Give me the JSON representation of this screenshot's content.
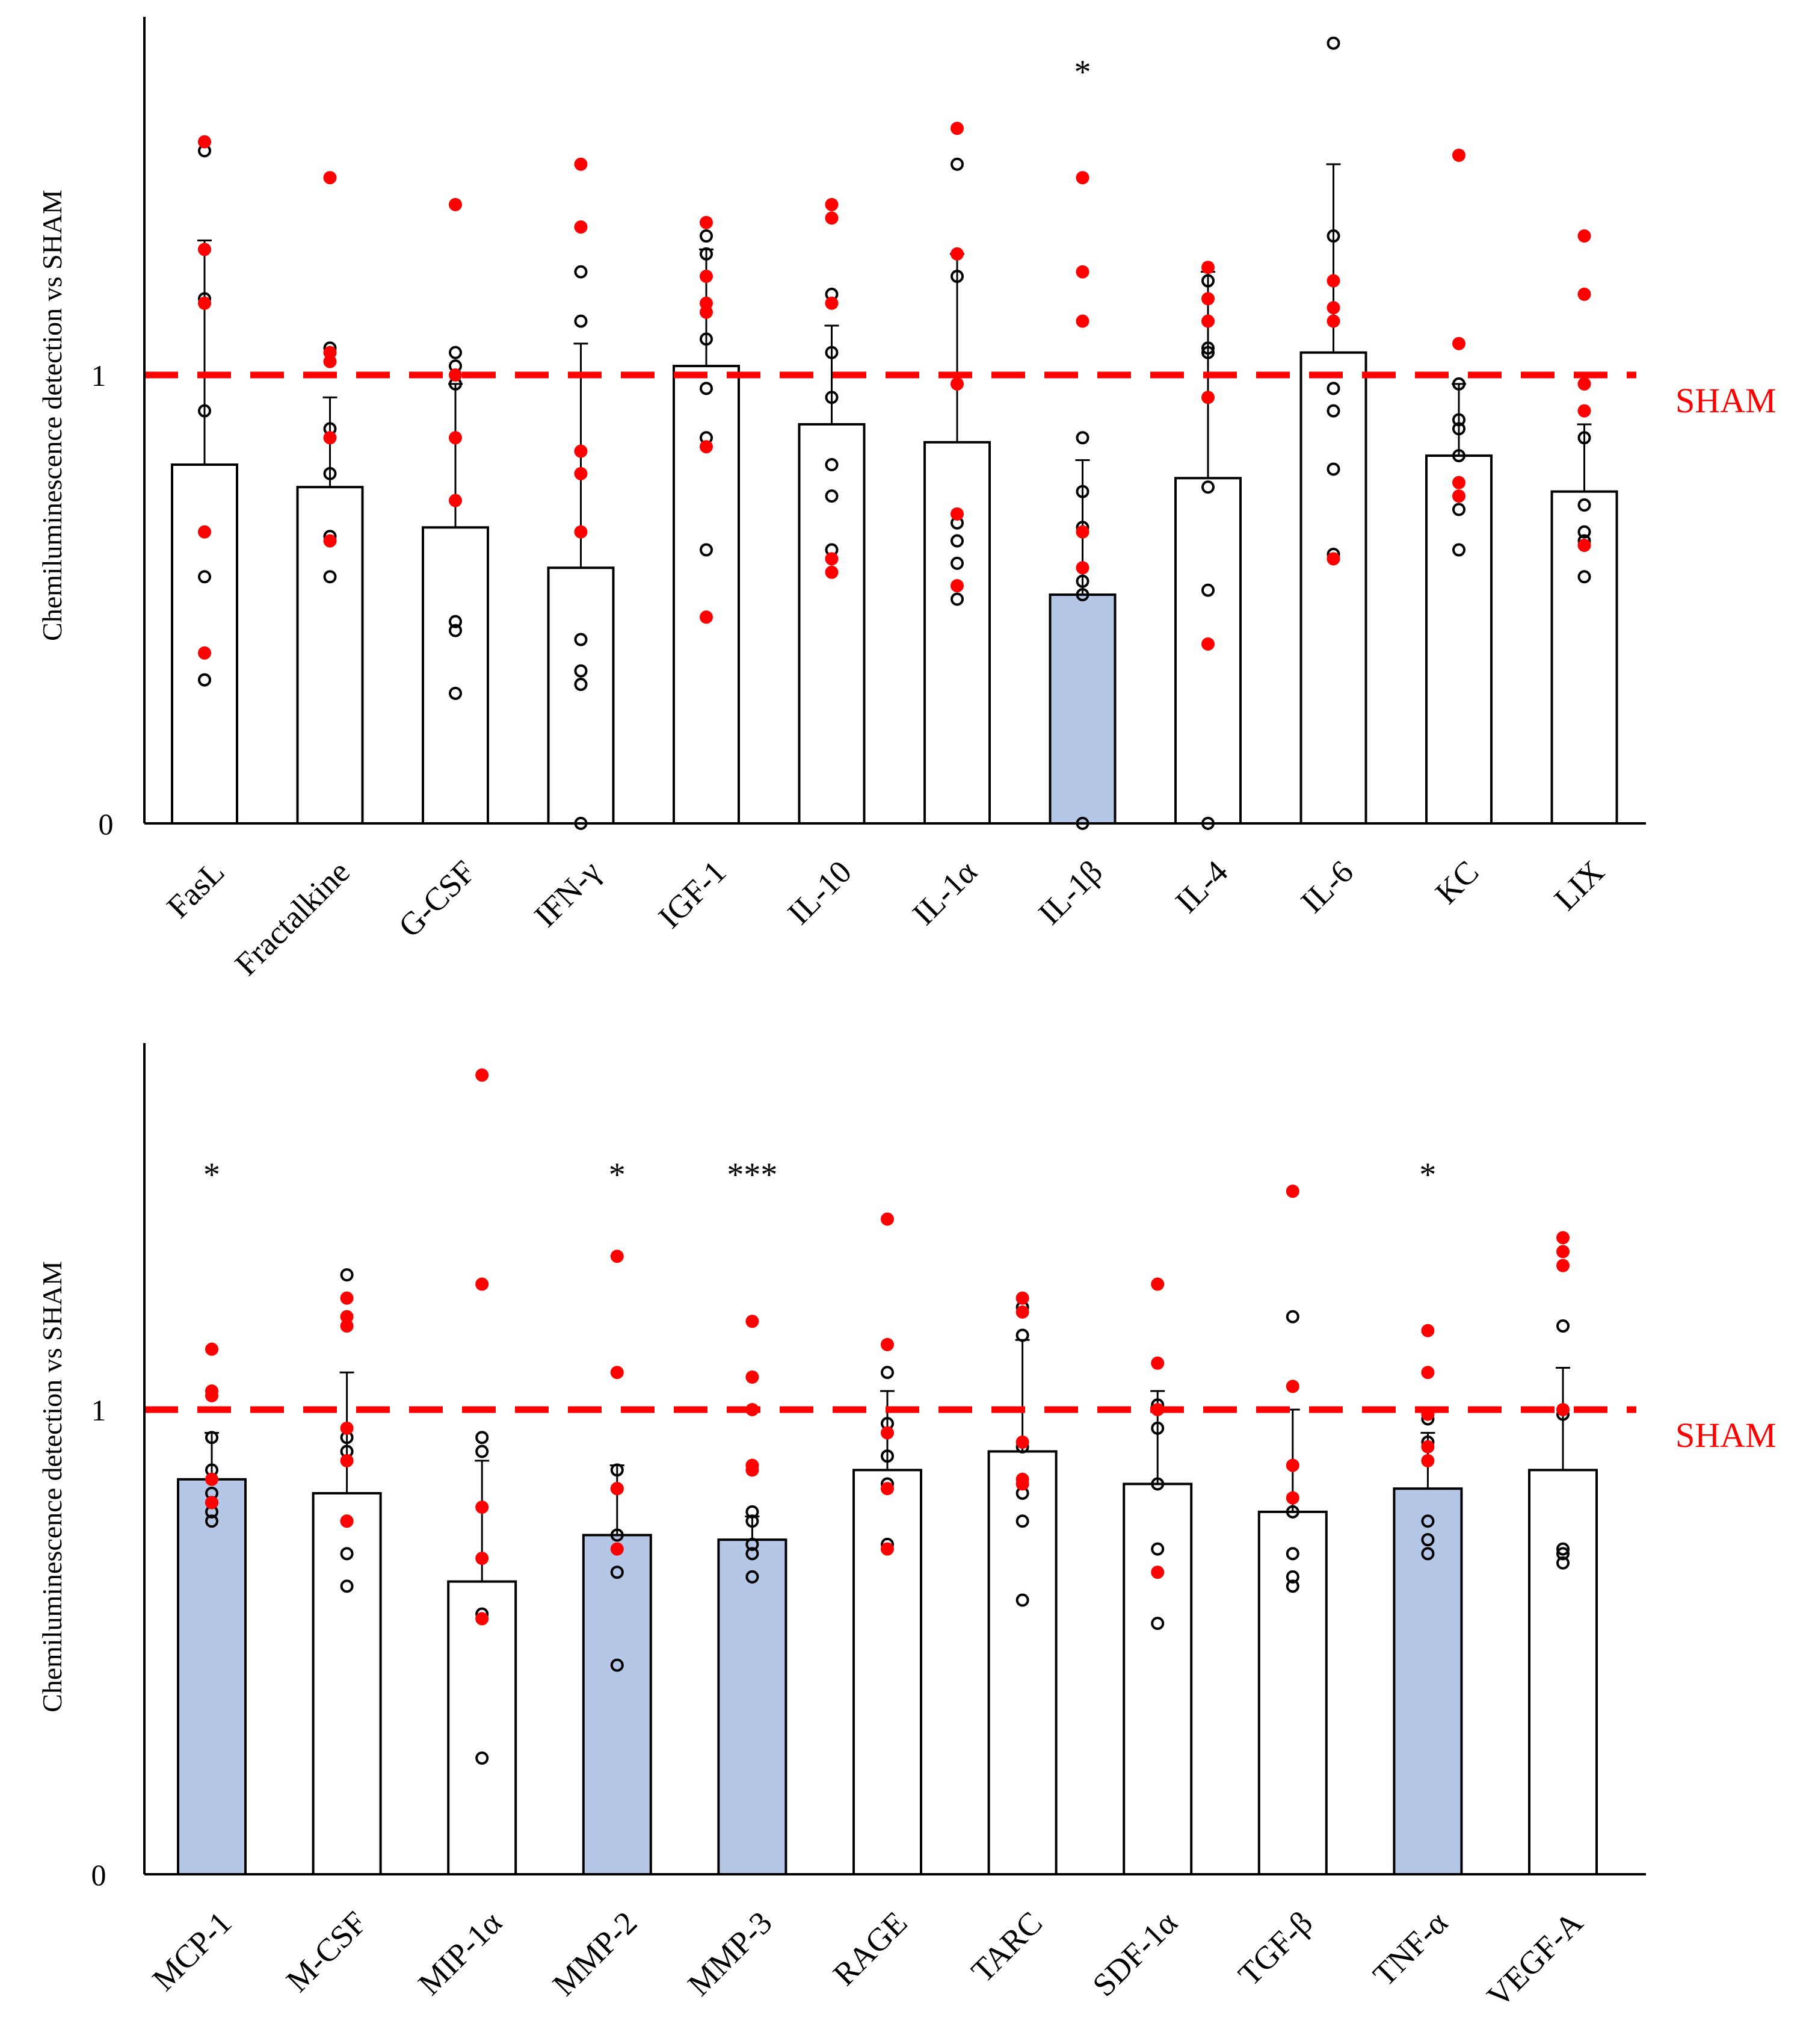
{
  "colors": {
    "bar_default": "#ffffff",
    "bar_significant": "#b4c7e7",
    "red_points": "#ff0000",
    "open_points": "#000000",
    "sham_line": "#ff0000",
    "axis": "#000000"
  },
  "chart_data": [
    {
      "type": "bar",
      "title": "",
      "xlabel": "",
      "ylabel": "Chemiluminescence detection vs SHAM",
      "ylim": [
        0,
        1.8
      ],
      "yticks": [
        "0",
        "1"
      ],
      "reference_line": {
        "value": 1,
        "label": "SHAM",
        "style": "dashed"
      },
      "categories": [
        "FasL",
        "Fractalkine",
        "G-CSF",
        "IFN-γ",
        "IGF-1",
        "IL-10",
        "IL-1α",
        "IL-1β",
        "IL-4",
        "IL-6",
        "KC",
        "LIX"
      ],
      "values": [
        0.8,
        0.75,
        0.66,
        0.57,
        1.02,
        0.89,
        0.85,
        0.51,
        0.77,
        1.05,
        0.82,
        0.74
      ],
      "errors": [
        0.5,
        0.2,
        0.32,
        0.5,
        0.26,
        0.22,
        0.42,
        0.3,
        0.46,
        0.42,
        0.16,
        0.15
      ],
      "highlighted": [
        false,
        false,
        false,
        false,
        false,
        false,
        false,
        true,
        false,
        false,
        false,
        false
      ],
      "significance": [
        "",
        "",
        "",
        "",
        "",
        "",
        "",
        "*",
        "",
        "",
        "",
        ""
      ],
      "points_red": [
        [
          1.52,
          1.28,
          1.16,
          0.65,
          0.38
        ],
        [
          1.44,
          1.05,
          1.03,
          0.86,
          0.63
        ],
        [
          1.38,
          1.0,
          0.86,
          0.72
        ],
        [
          1.47,
          1.33,
          0.83,
          0.78,
          0.65
        ],
        [
          1.34,
          1.22,
          1.16,
          1.14,
          0.84,
          0.46
        ],
        [
          1.38,
          1.35,
          1.16,
          0.59,
          0.56
        ],
        [
          1.55,
          1.27,
          0.98,
          0.69,
          0.53
        ],
        [
          1.44,
          1.23,
          1.12,
          0.65,
          0.57
        ],
        [
          1.24,
          1.17,
          1.12,
          0.95,
          0.4
        ],
        [
          1.21,
          1.15,
          1.12,
          0.59
        ],
        [
          1.49,
          1.07,
          0.76,
          0.73
        ],
        [
          1.31,
          1.18,
          0.98,
          0.92,
          0.62
        ]
      ],
      "points_open": [
        [
          1.5,
          1.17,
          0.92,
          0.55,
          0.32,
          0.32
        ],
        [
          1.06,
          0.88,
          0.78,
          0.64,
          0.55
        ],
        [
          1.05,
          1.02,
          0.98,
          0.45,
          0.43,
          0.29
        ],
        [
          1.23,
          1.12,
          0.41,
          0.34,
          0.31,
          0.0
        ],
        [
          1.31,
          1.27,
          1.08,
          0.97,
          0.86,
          0.61
        ],
        [
          1.18,
          1.05,
          0.95,
          0.8,
          0.73,
          0.61
        ],
        [
          1.47,
          1.22,
          0.67,
          0.63,
          0.58,
          0.5
        ],
        [
          0.86,
          0.74,
          0.66,
          0.54,
          0.51,
          0.0
        ],
        [
          1.21,
          1.06,
          1.05,
          0.75,
          0.52,
          0.0
        ],
        [
          1.74,
          1.31,
          0.97,
          0.92,
          0.79,
          0.6
        ],
        [
          0.98,
          0.9,
          0.88,
          0.82,
          0.7,
          0.61
        ],
        [
          0.86,
          0.71,
          0.65,
          0.63,
          0.55
        ]
      ]
    },
    {
      "type": "bar",
      "title": "",
      "xlabel": "",
      "ylabel": "Chemiluminescence detection vs SHAM",
      "ylim": [
        0,
        1.8
      ],
      "yticks": [
        "0",
        "1"
      ],
      "reference_line": {
        "value": 1,
        "label": "SHAM",
        "style": "dashed"
      },
      "categories": [
        "MCP-1",
        "M-CSF",
        "MIP-1α",
        "MMP-2",
        "MMP-3",
        "RAGE",
        "TARC",
        "SDF-1α",
        "TGF-β",
        "TNF-α",
        "VEGF-A"
      ],
      "values": [
        0.85,
        0.82,
        0.63,
        0.73,
        0.72,
        0.87,
        0.91,
        0.84,
        0.78,
        0.83,
        0.87
      ],
      "errors": [
        0.1,
        0.26,
        0.26,
        0.15,
        0.05,
        0.17,
        0.24,
        0.2,
        0.22,
        0.12,
        0.22
      ],
      "highlighted": [
        true,
        false,
        false,
        true,
        true,
        false,
        false,
        false,
        false,
        true,
        false
      ],
      "significance": [
        "*",
        "",
        "",
        "*",
        "***",
        "",
        "",
        "",
        "",
        "*",
        ""
      ],
      "points_red": [
        [
          1.13,
          1.04,
          1.03,
          0.85,
          0.8
        ],
        [
          1.24,
          1.2,
          1.18,
          0.96,
          0.89,
          0.76
        ],
        [
          1.72,
          1.27,
          0.79,
          0.68,
          0.55
        ],
        [
          1.33,
          1.08,
          0.83,
          0.7
        ],
        [
          1.19,
          1.07,
          1.0,
          0.88,
          0.87
        ],
        [
          1.41,
          1.14,
          0.95,
          0.83,
          0.7
        ],
        [
          1.24,
          1.21,
          0.93,
          0.85,
          0.84
        ],
        [
          1.27,
          1.1,
          1.0,
          0.65
        ],
        [
          1.47,
          1.05,
          0.88,
          0.81
        ],
        [
          1.17,
          1.08,
          0.99,
          0.92,
          0.89
        ],
        [
          1.37,
          1.34,
          1.31,
          1.0
        ]
      ],
      "points_open": [
        [
          0.94,
          0.87,
          0.82,
          0.8,
          0.78,
          0.76
        ],
        [
          1.29,
          0.94,
          0.91,
          0.76,
          0.69,
          0.62
        ],
        [
          0.94,
          0.91,
          0.56,
          0.25
        ],
        [
          0.87,
          0.83,
          0.73,
          0.65,
          0.45
        ],
        [
          0.78,
          0.76,
          0.71,
          0.69,
          0.64
        ],
        [
          1.08,
          0.97,
          0.9,
          0.84,
          0.71
        ],
        [
          1.22,
          1.16,
          0.92,
          0.82,
          0.76,
          0.59
        ],
        [
          1.01,
          0.96,
          0.84,
          0.7,
          0.54
        ],
        [
          1.2,
          0.78,
          0.69,
          0.64,
          0.62
        ],
        [
          0.98,
          0.93,
          0.76,
          0.72,
          0.69
        ],
        [
          1.18,
          0.99,
          0.7,
          0.69,
          0.67
        ]
      ]
    }
  ]
}
